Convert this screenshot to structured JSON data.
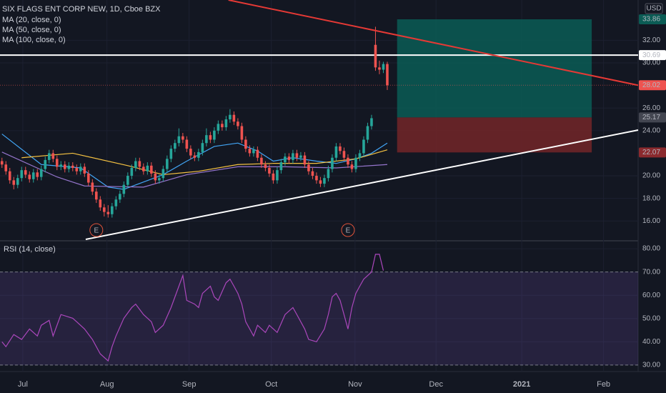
{
  "chart_data": {
    "type": "candlestick",
    "title": "SIX FLAGS ENT CORP NEW, 1D, Cboe BZX",
    "currency": "USD",
    "x": [
      0,
      1,
      2,
      3,
      4,
      5,
      6,
      7,
      8,
      9,
      10,
      11,
      12,
      13,
      14,
      15,
      16,
      17,
      18,
      19,
      20,
      21,
      22,
      23,
      24,
      25,
      26,
      27,
      28,
      29,
      30,
      31,
      32,
      33,
      34,
      35,
      36,
      37,
      38,
      39,
      40,
      41,
      42,
      43,
      44,
      45,
      46,
      47,
      48,
      49,
      50,
      51,
      52,
      53,
      54,
      55,
      56,
      57,
      58,
      59,
      60,
      61,
      62,
      63,
      64,
      65,
      66,
      67,
      68,
      69,
      70,
      71,
      72,
      73,
      74,
      75,
      76,
      77,
      78,
      79,
      80,
      81,
      82,
      83,
      84,
      85,
      86,
      87,
      88,
      89,
      90,
      91,
      92,
      93,
      94,
      95,
      96,
      97,
      98
    ],
    "open": [
      21.3,
      21.0,
      20.4,
      19.6,
      19.2,
      19.8,
      20.5,
      20.1,
      19.7,
      20.3,
      19.9,
      20.6,
      21.4,
      22.0,
      21.5,
      20.8,
      21.0,
      20.6,
      20.9,
      20.7,
      20.4,
      20.8,
      20.2,
      19.4,
      18.6,
      17.9,
      17.2,
      16.8,
      16.6,
      17.3,
      17.9,
      18.4,
      19.2,
      20.0,
      20.7,
      21.3,
      20.8,
      20.4,
      20.9,
      20.2,
      19.6,
      19.8,
      20.6,
      21.5,
      22.4,
      22.9,
      23.5,
      23.2,
      22.4,
      21.8,
      21.6,
      22.1,
      22.9,
      23.6,
      23.2,
      24.0,
      24.6,
      24.3,
      25.0,
      25.4,
      24.8,
      24.4,
      23.2,
      22.4,
      22.0,
      22.3,
      21.6,
      21.0,
      20.7,
      20.2,
      19.6,
      20.5,
      21.2,
      21.7,
      21.4,
      22.0,
      21.6,
      21.8,
      21.0,
      20.4,
      20.0,
      19.6,
      19.3,
      19.8,
      20.6,
      21.6,
      22.6,
      22.2,
      21.6,
      21.0,
      20.6,
      21.6,
      22.0,
      23.2,
      24.4,
      31.6,
      29.6,
      29.4,
      29.9
    ],
    "high": [
      21.6,
      21.3,
      20.7,
      19.9,
      20.1,
      20.8,
      20.8,
      20.4,
      20.6,
      20.6,
      20.9,
      21.7,
      22.3,
      22.3,
      21.8,
      21.3,
      21.3,
      21.2,
      21.2,
      21.0,
      21.1,
      21.1,
      20.5,
      19.7,
      18.9,
      18.2,
      17.5,
      17.4,
      17.6,
      18.2,
      18.7,
      19.5,
      20.3,
      21.0,
      21.6,
      21.6,
      21.1,
      21.2,
      21.2,
      20.5,
      20.1,
      20.9,
      21.8,
      22.7,
      23.2,
      24.2,
      23.8,
      23.5,
      22.7,
      22.1,
      22.4,
      23.2,
      24.2,
      23.9,
      24.3,
      24.9,
      24.9,
      25.3,
      25.9,
      25.7,
      25.1,
      24.7,
      23.5,
      22.7,
      22.6,
      22.6,
      21.9,
      21.3,
      21.0,
      20.5,
      20.8,
      21.5,
      22.0,
      22.0,
      22.3,
      22.3,
      22.1,
      22.1,
      21.3,
      20.7,
      20.3,
      19.9,
      20.1,
      20.9,
      21.9,
      22.9,
      22.9,
      22.5,
      21.9,
      21.3,
      21.9,
      22.3,
      23.5,
      24.7,
      25.4,
      33.2,
      30.2,
      30.1,
      30.1
    ],
    "low": [
      20.7,
      20.1,
      19.3,
      18.8,
      18.9,
      19.5,
      19.8,
      19.4,
      19.4,
      19.6,
      19.6,
      20.3,
      21.1,
      21.2,
      20.5,
      20.5,
      20.3,
      20.3,
      20.4,
      20.1,
      20.1,
      19.9,
      19.1,
      18.3,
      17.6,
      16.9,
      16.4,
      16.3,
      16.3,
      17.0,
      17.6,
      18.1,
      18.9,
      19.7,
      20.4,
      20.5,
      20.1,
      20.1,
      19.9,
      19.3,
      19.3,
      19.5,
      20.3,
      21.2,
      22.1,
      22.6,
      22.9,
      22.1,
      21.5,
      21.3,
      21.3,
      21.8,
      22.6,
      22.9,
      22.9,
      23.7,
      24.0,
      24.0,
      24.7,
      24.5,
      24.1,
      22.9,
      22.1,
      21.7,
      21.7,
      21.3,
      20.7,
      20.4,
      19.9,
      19.3,
      19.3,
      20.2,
      20.9,
      21.1,
      21.1,
      21.3,
      21.3,
      20.7,
      20.1,
      19.7,
      19.3,
      19.0,
      19.0,
      19.5,
      20.3,
      21.3,
      21.9,
      21.3,
      20.7,
      20.3,
      20.3,
      21.3,
      21.7,
      22.9,
      24.1,
      29.3,
      29.0,
      29.1,
      27.6
    ],
    "close": [
      21.0,
      20.4,
      19.6,
      19.2,
      19.8,
      20.5,
      20.1,
      19.7,
      20.3,
      19.9,
      20.6,
      21.4,
      22.0,
      21.5,
      20.8,
      21.0,
      20.6,
      20.9,
      20.7,
      20.4,
      20.8,
      20.2,
      19.4,
      18.6,
      17.9,
      17.2,
      16.8,
      16.6,
      17.3,
      17.9,
      18.4,
      19.2,
      20.0,
      20.7,
      21.3,
      20.8,
      20.4,
      20.9,
      20.2,
      19.6,
      19.8,
      20.6,
      21.5,
      22.4,
      22.9,
      23.5,
      23.2,
      22.4,
      21.8,
      21.6,
      22.1,
      22.9,
      23.6,
      23.2,
      24.0,
      24.6,
      24.3,
      25.0,
      25.4,
      24.8,
      24.4,
      23.2,
      22.4,
      22.0,
      22.3,
      21.6,
      21.0,
      20.7,
      20.2,
      19.6,
      20.5,
      21.2,
      21.7,
      21.4,
      22.0,
      21.6,
      21.8,
      21.0,
      20.4,
      20.0,
      19.6,
      19.3,
      19.8,
      20.6,
      21.6,
      22.6,
      22.2,
      21.6,
      21.0,
      20.6,
      21.6,
      22.0,
      23.2,
      24.4,
      25.1,
      29.6,
      29.4,
      29.9,
      28.02
    ],
    "up_color": "#26a69a",
    "down_color": "#ef5350",
    "xlim": [
      -0.5,
      161.8
    ],
    "xticks": [
      {
        "value": 5.3,
        "label": "Jul"
      },
      {
        "value": 26.7,
        "label": "Aug"
      },
      {
        "value": 47.6,
        "label": "Sep"
      },
      {
        "value": 68.5,
        "label": "Oct"
      },
      {
        "value": 89.8,
        "label": "Nov"
      },
      {
        "value": 110.4,
        "label": "Dec"
      },
      {
        "value": 132.2,
        "label": "2021",
        "bold": true
      },
      {
        "value": 153,
        "label": "Feb"
      }
    ],
    "ylim": [
      14.37,
      35.57
    ],
    "yticks": [
      {
        "value": 16,
        "label": "16.00"
      },
      {
        "value": 18,
        "label": "18.00"
      },
      {
        "value": 20,
        "label": "20.00"
      },
      {
        "value": 24,
        "label": "24.00"
      },
      {
        "value": 26,
        "label": "26.00"
      },
      {
        "value": 30,
        "label": "30.00"
      },
      {
        "value": 32,
        "label": "32.00"
      }
    ],
    "grid": true,
    "series": [
      {
        "name": "MA (20, close, 0)",
        "color": "#42a5f5",
        "x": [
          0,
          10,
          20,
          27,
          31,
          41,
          47,
          54,
          60,
          65,
          69,
          74,
          80,
          85,
          90,
          94,
          98
        ],
        "values": [
          23.7,
          21.0,
          20.7,
          19.0,
          18.8,
          20.1,
          21.3,
          22.6,
          22.9,
          22.2,
          21.3,
          21.6,
          21.3,
          21.1,
          21.5,
          22.0,
          22.9
        ]
      },
      {
        "name": "MA (50, close, 0)",
        "color": "#f5c242",
        "x": [
          5,
          18,
          32,
          41,
          50,
          60,
          69,
          80,
          90,
          98
        ],
        "values": [
          21.6,
          22.0,
          20.9,
          20.1,
          20.4,
          21.0,
          21.1,
          21.1,
          21.5,
          22.3
        ]
      },
      {
        "name": "MA (100, close, 0)",
        "color": "#9575cd",
        "x": [
          0,
          14,
          21,
          36,
          47,
          60,
          72,
          85,
          98
        ],
        "values": [
          22.1,
          19.9,
          19.1,
          19.0,
          20.1,
          20.8,
          20.8,
          20.7,
          21.0
        ]
      }
    ],
    "lines": [
      {
        "x": [
          57.6,
          161.8
        ],
        "y": [
          35.57,
          28.02
        ],
        "color": "#e53935"
      },
      {
        "x": [
          21.3,
          161.8
        ],
        "y": [
          14.37,
          24.05
        ],
        "color": "#ffffff"
      }
    ],
    "hline": {
      "value": 30.69,
      "color": "#ffffff"
    },
    "position": {
      "x": [
        100.5,
        150
      ],
      "target": 33.86,
      "entry": 25.17,
      "stop": 22.07,
      "profit_color": "#0b5c55",
      "loss_color": "#6e2528",
      "entry_color": "#434651",
      "stop_color": "#8b2a2e"
    },
    "earnings": [
      {
        "x": 24,
        "label": "E"
      },
      {
        "x": 88,
        "label": "E"
      }
    ],
    "rsi": {
      "name": "RSI (14, close)",
      "color": "#ab47bc",
      "x": [
        0,
        1,
        3,
        5,
        7,
        9,
        10,
        12,
        13,
        15,
        18,
        19,
        21,
        23,
        25,
        27,
        28,
        29,
        31,
        33,
        34,
        36,
        38,
        39,
        41,
        43,
        45,
        46,
        47,
        49,
        50,
        51,
        53,
        54,
        55,
        57,
        58,
        59,
        60,
        61,
        62,
        64,
        65,
        67,
        68,
        70,
        72,
        74,
        75,
        77,
        78,
        80,
        82,
        83,
        84,
        85,
        86,
        88,
        89,
        90,
        91,
        92,
        94,
        95,
        96,
        97
      ],
      "values": [
        40.0,
        37.9,
        43.1,
        41.0,
        45.5,
        42.5,
        47.1,
        49.2,
        42.5,
        51.7,
        50.1,
        48.6,
        45.5,
        41.0,
        34.8,
        31.8,
        37.9,
        42.5,
        50.1,
        54.7,
        56.2,
        51.7,
        48.6,
        44.0,
        47.1,
        54.7,
        63.9,
        68.5,
        57.8,
        56.2,
        54.7,
        60.8,
        63.9,
        59.3,
        57.8,
        65.4,
        66.9,
        63.9,
        60.8,
        56.2,
        48.6,
        42.5,
        47.1,
        44.0,
        47.1,
        44.0,
        51.7,
        54.7,
        51.7,
        45.5,
        41.0,
        40.0,
        45.5,
        51.7,
        59.3,
        60.8,
        57.8,
        45.5,
        54.7,
        60.8,
        63.9,
        66.9,
        70.0,
        77.6,
        77.6,
        70.6
      ],
      "ylim": [
        27.2,
        83.1
      ],
      "yticks": [
        {
          "value": 30,
          "label": "30.00"
        },
        {
          "value": 40,
          "label": "40.00"
        },
        {
          "value": 50,
          "label": "50.00"
        },
        {
          "value": 60,
          "label": "60.00"
        },
        {
          "value": 70,
          "label": "70.00"
        },
        {
          "value": 80,
          "label": "80.00"
        }
      ],
      "overbought": 70,
      "oversold": 30
    }
  }
}
